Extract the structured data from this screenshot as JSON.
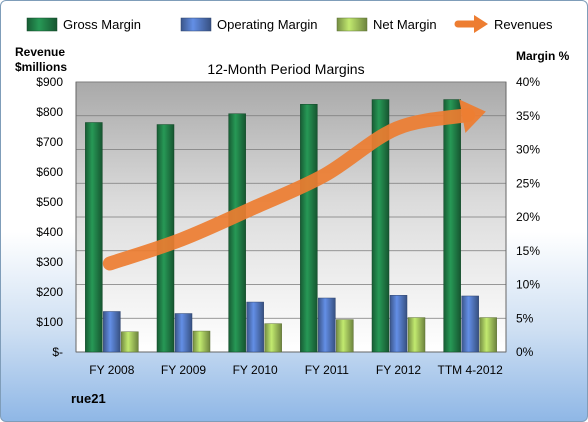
{
  "chart_data": {
    "type": "bar",
    "title": "12-Month Period Margins",
    "company_label": "rue21",
    "categories": [
      "FY 2008",
      "FY 2009",
      "FY 2010",
      "FY 2011",
      "FY 2012",
      "TTM 4-2012"
    ],
    "left_axis": {
      "title_line1": "Revenue",
      "title_line2": "$millions",
      "ylim": [
        0,
        900
      ],
      "ticks": [
        0,
        100,
        200,
        300,
        400,
        500,
        600,
        700,
        800,
        900
      ],
      "tick_labels": [
        "$-",
        "$100",
        "$200",
        "$300",
        "$400",
        "$500",
        "$600",
        "$700",
        "$800",
        "$900"
      ]
    },
    "right_axis": {
      "title": "Margin %",
      "ylim": [
        0,
        40
      ],
      "ticks": [
        0,
        5,
        10,
        15,
        20,
        25,
        30,
        35,
        40
      ],
      "tick_labels": [
        "0%",
        "5%",
        "10%",
        "15%",
        "20%",
        "25%",
        "30%",
        "35%",
        "40%"
      ]
    },
    "series": [
      {
        "name": "Gross Margin",
        "axis": "right",
        "kind": "bar",
        "color": "#1f7a45",
        "values": [
          34.0,
          33.7,
          35.3,
          36.7,
          37.4,
          37.4
        ]
      },
      {
        "name": "Operating Margin",
        "axis": "right",
        "kind": "bar",
        "color": "#4f72b8",
        "values": [
          6.0,
          5.7,
          7.4,
          8.0,
          8.4,
          8.3
        ]
      },
      {
        "name": "Net Margin",
        "axis": "right",
        "kind": "bar",
        "color": "#9bbb59",
        "values": [
          3.0,
          3.1,
          4.2,
          4.8,
          5.1,
          5.1
        ]
      },
      {
        "name": "Revenues",
        "axis": "left",
        "kind": "arrow",
        "color": "#ed7d31",
        "values": [
          295,
          375,
          480,
          590,
          745,
          790
        ]
      }
    ],
    "legend_position": "top",
    "grid": true
  }
}
